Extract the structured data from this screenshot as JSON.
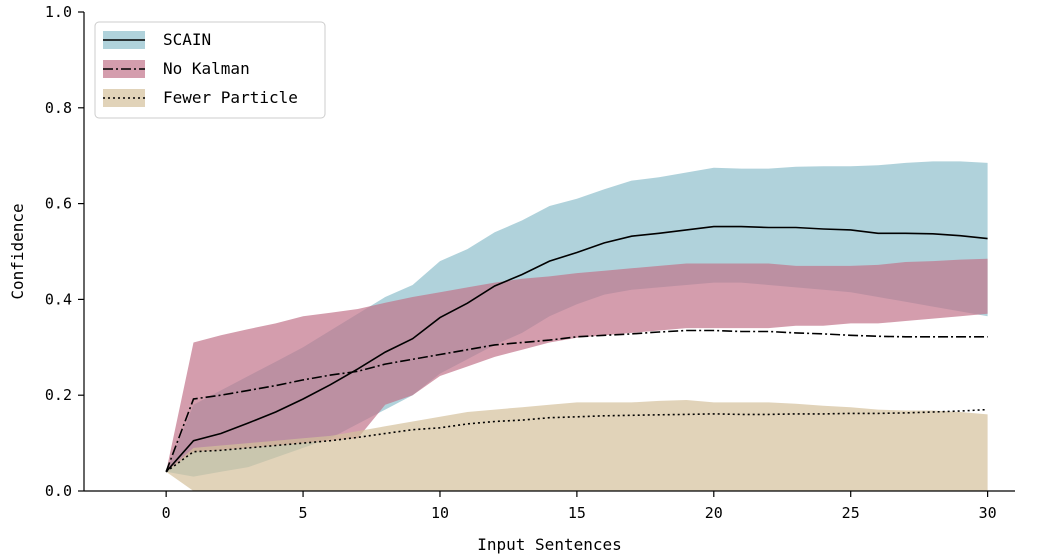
{
  "chart_data": {
    "type": "area",
    "xlabel": "Input Sentences",
    "ylabel": "Confidence",
    "xlim": [
      -3,
      31
    ],
    "ylim": [
      0.0,
      1.0
    ],
    "xticks": [
      0,
      5,
      10,
      15,
      20,
      25,
      30
    ],
    "yticks": [
      0.0,
      0.2,
      0.4,
      0.6,
      0.8,
      1.0
    ],
    "xtick_labels": [
      "0",
      "5",
      "10",
      "15",
      "20",
      "25",
      "30"
    ],
    "ytick_labels": [
      "0.0",
      "0.2",
      "0.4",
      "0.6",
      "0.8",
      "1.0"
    ],
    "legend_position": "top-left",
    "grid": false,
    "x": [
      0,
      1,
      2,
      3,
      4,
      5,
      6,
      7,
      8,
      9,
      10,
      11,
      12,
      13,
      14,
      15,
      16,
      17,
      18,
      19,
      20,
      21,
      22,
      23,
      24,
      25,
      26,
      27,
      28,
      29,
      30
    ],
    "series": [
      {
        "name": "SCAIN",
        "line_style": "solid",
        "fill_color": "#8fbfcc",
        "mean": [
          0.04,
          0.105,
          0.12,
          0.142,
          0.165,
          0.192,
          0.222,
          0.255,
          0.29,
          0.318,
          0.362,
          0.392,
          0.428,
          0.452,
          0.48,
          0.498,
          0.518,
          0.532,
          0.538,
          0.545,
          0.552,
          0.552,
          0.55,
          0.55,
          0.547,
          0.545,
          0.538,
          0.538,
          0.537,
          0.533,
          0.527
        ],
        "upper": [
          0.04,
          0.18,
          0.21,
          0.24,
          0.27,
          0.3,
          0.335,
          0.37,
          0.405,
          0.43,
          0.48,
          0.505,
          0.54,
          0.565,
          0.595,
          0.61,
          0.63,
          0.648,
          0.655,
          0.665,
          0.675,
          0.673,
          0.673,
          0.677,
          0.678,
          0.678,
          0.68,
          0.685,
          0.688,
          0.688,
          0.685
        ],
        "lower": [
          0.04,
          0.03,
          0.04,
          0.05,
          0.07,
          0.09,
          0.11,
          0.14,
          0.17,
          0.2,
          0.245,
          0.275,
          0.305,
          0.33,
          0.365,
          0.39,
          0.41,
          0.42,
          0.425,
          0.43,
          0.435,
          0.435,
          0.43,
          0.425,
          0.42,
          0.415,
          0.405,
          0.395,
          0.385,
          0.375,
          0.365
        ]
      },
      {
        "name": "No Kalman",
        "line_style": "dashdot",
        "fill_color": "#c2738a",
        "mean": [
          0.04,
          0.192,
          0.2,
          0.21,
          0.22,
          0.232,
          0.242,
          0.25,
          0.265,
          0.275,
          0.285,
          0.295,
          0.305,
          0.31,
          0.315,
          0.322,
          0.325,
          0.328,
          0.332,
          0.335,
          0.335,
          0.333,
          0.333,
          0.33,
          0.328,
          0.325,
          0.323,
          0.322,
          0.322,
          0.322,
          0.322
        ],
        "upper": [
          0.04,
          0.31,
          0.325,
          0.338,
          0.35,
          0.365,
          0.372,
          0.38,
          0.393,
          0.405,
          0.415,
          0.425,
          0.435,
          0.443,
          0.448,
          0.455,
          0.46,
          0.465,
          0.47,
          0.475,
          0.475,
          0.475,
          0.475,
          0.47,
          0.47,
          0.47,
          0.472,
          0.478,
          0.48,
          0.483,
          0.485
        ],
        "lower": [
          0.04,
          0.082,
          0.085,
          0.09,
          0.095,
          0.1,
          0.105,
          0.11,
          0.18,
          0.2,
          0.24,
          0.26,
          0.28,
          0.295,
          0.31,
          0.32,
          0.325,
          0.33,
          0.335,
          0.34,
          0.34,
          0.34,
          0.34,
          0.345,
          0.345,
          0.35,
          0.35,
          0.355,
          0.36,
          0.365,
          0.37
        ]
      },
      {
        "name": "Fewer Particle",
        "line_style": "dotted",
        "fill_color": "#d4c09b",
        "mean": [
          0.04,
          0.082,
          0.085,
          0.09,
          0.095,
          0.1,
          0.105,
          0.112,
          0.12,
          0.128,
          0.132,
          0.14,
          0.145,
          0.148,
          0.153,
          0.155,
          0.157,
          0.158,
          0.159,
          0.16,
          0.161,
          0.16,
          0.16,
          0.161,
          0.161,
          0.162,
          0.162,
          0.163,
          0.165,
          0.167,
          0.17
        ],
        "upper": [
          0.04,
          0.09,
          0.095,
          0.1,
          0.105,
          0.11,
          0.115,
          0.125,
          0.135,
          0.145,
          0.155,
          0.165,
          0.17,
          0.175,
          0.18,
          0.185,
          0.185,
          0.185,
          0.188,
          0.19,
          0.185,
          0.185,
          0.185,
          0.182,
          0.178,
          0.175,
          0.17,
          0.168,
          0.168,
          0.165,
          0.16
        ],
        "lower": [
          0.04,
          0.0,
          0.0,
          0.0,
          0.0,
          0.0,
          0.0,
          0.0,
          0.0,
          0.0,
          0.0,
          0.0,
          0.0,
          0.0,
          0.0,
          0.0,
          0.0,
          0.0,
          0.0,
          0.0,
          0.0,
          0.0,
          0.0,
          0.0,
          0.0,
          0.0,
          0.0,
          0.0,
          0.0,
          0.0,
          0.0
        ]
      }
    ]
  }
}
